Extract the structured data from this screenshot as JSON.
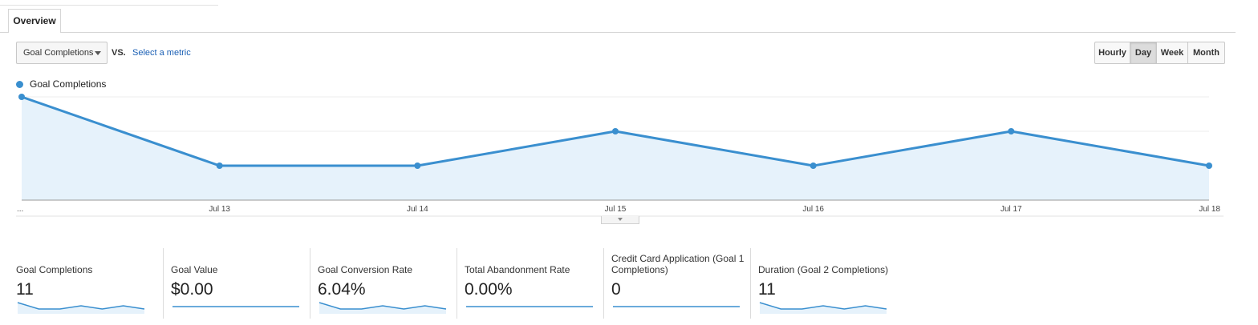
{
  "tabs": [
    {
      "label": "Overview",
      "active": true
    }
  ],
  "toolbar": {
    "metric_select_value": "Goal Completions",
    "vs_label": "VS.",
    "select_metric_link": "Select a metric",
    "granularity": [
      {
        "label": "Hourly",
        "active": false
      },
      {
        "label": "Day",
        "active": true
      },
      {
        "label": "Week",
        "active": false
      },
      {
        "label": "Month",
        "active": false
      }
    ]
  },
  "colors": {
    "series": "#3a8fcf",
    "area": "#e6f2fb",
    "link": "#1a5fb4"
  },
  "chart_data": {
    "type": "line",
    "series": [
      {
        "name": "Goal Completions",
        "values": [
          3,
          1,
          1,
          2,
          1,
          2,
          1
        ]
      }
    ],
    "x": [
      "...",
      "Jul 13",
      "Jul 14",
      "Jul 15",
      "Jul 16",
      "Jul 17",
      "Jul 18"
    ],
    "yticks": [
      1,
      2,
      3
    ],
    "ylim": [
      0,
      3
    ],
    "area_fill": true,
    "grid": true,
    "legend": "top-left"
  },
  "scorecards": [
    {
      "label": "Goal Completions",
      "value": "11",
      "spark": [
        3,
        1,
        1,
        2,
        1,
        2,
        1
      ]
    },
    {
      "label": "Goal Value",
      "value": "$0.00",
      "spark": [
        0,
        0,
        0,
        0,
        0,
        0,
        0
      ]
    },
    {
      "label": "Goal Conversion Rate",
      "value": "6.04%",
      "spark": [
        3,
        1,
        1,
        2,
        1,
        2,
        1
      ]
    },
    {
      "label": "Total Abandonment Rate",
      "value": "0.00%",
      "spark": [
        0,
        0,
        0,
        0,
        0,
        0,
        0
      ]
    },
    {
      "label": "Credit Card Application (Goal 1 Completions)",
      "value": "0",
      "spark": [
        0,
        0,
        0,
        0,
        0,
        0,
        0
      ]
    },
    {
      "label": "Duration (Goal 2 Completions)",
      "value": "11",
      "spark": [
        3,
        1,
        1,
        2,
        1,
        2,
        1
      ]
    }
  ]
}
